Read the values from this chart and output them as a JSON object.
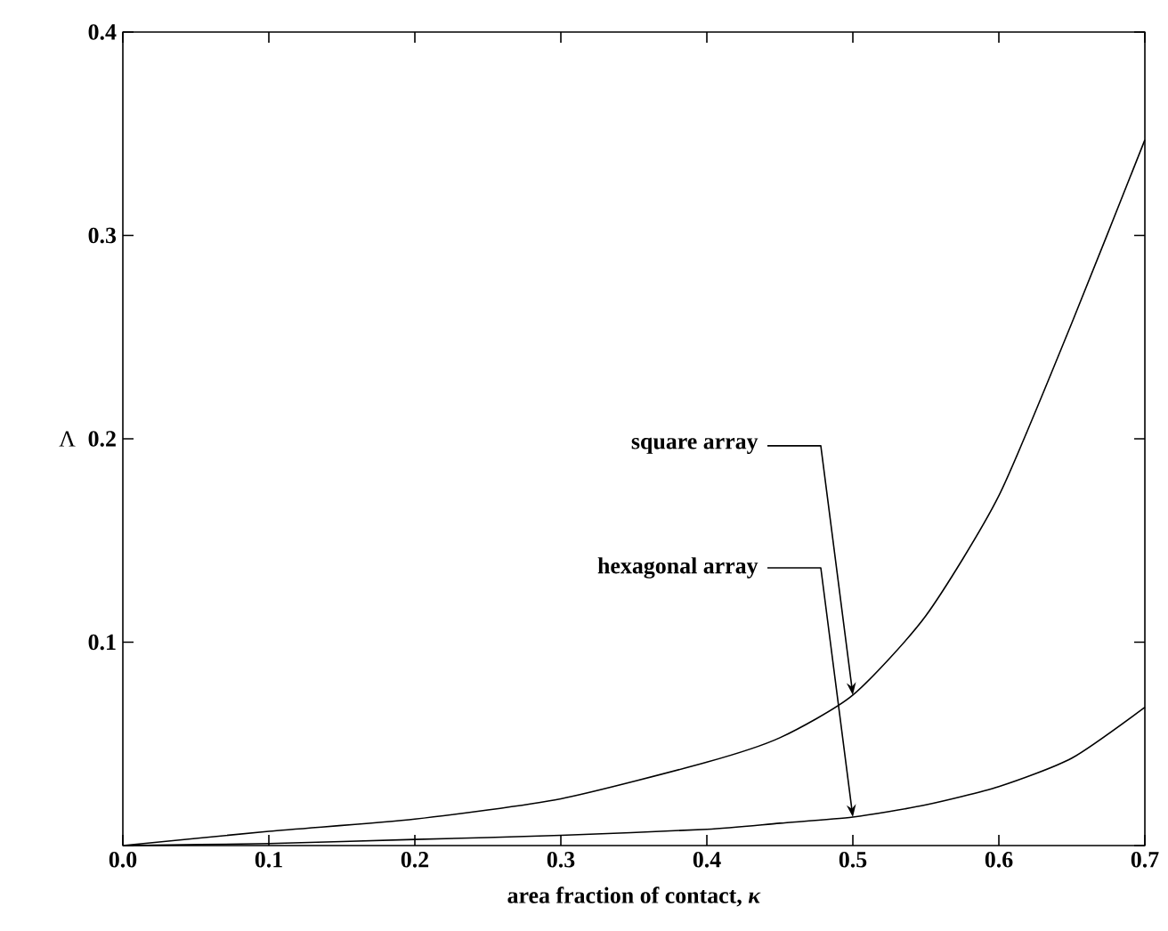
{
  "chart_data": {
    "type": "line",
    "xlabel": "area fraction of contact, *κ*",
    "ylabel": "Λ",
    "xlim": [
      0,
      0.7
    ],
    "ylim": [
      0,
      0.4
    ],
    "xticks": [
      {
        "value": 0,
        "label": "0.0"
      },
      0.1,
      0.2,
      0.3,
      0.4,
      0.5,
      0.6,
      0.7
    ],
    "yticks": [
      {
        "value": 0,
        "label": null
      },
      0.1,
      0.2,
      0.3,
      0.4
    ],
    "x": [
      0,
      0.1,
      0.2,
      0.3,
      0.4,
      0.45,
      0.5,
      0.55,
      0.6,
      0.65,
      0.7
    ],
    "series": [
      {
        "color": "#000000",
        "values": [
          0,
          0.007,
          0.013,
          0.023,
          0.041,
          0.053,
          0.074,
          0.113,
          0.172,
          0.257,
          0.347
        ]
      },
      {
        "color": "#000000",
        "values": [
          0,
          0.001,
          0.003,
          0.005,
          0.008,
          0.011,
          0.014,
          0.02,
          0.029,
          0.043,
          0.068
        ]
      }
    ],
    "annotations": [
      {
        "text": "square array",
        "x": 0.5,
        "y": 0.074
      },
      {
        "text": "hexagonal array",
        "x": 0.5,
        "y": 0.014
      }
    ],
    "grid": false,
    "marker": "none",
    "line_style": "solid"
  }
}
